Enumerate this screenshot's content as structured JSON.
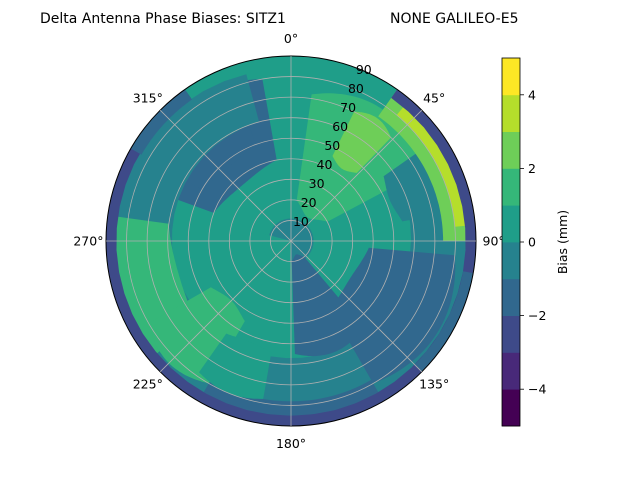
{
  "chart_data": {
    "type": "heatmap",
    "projection": "polar",
    "title_left": "Delta Antenna Phase Biases: SITZ1",
    "title_right": "NONE GALILEO-E5",
    "angular_ticks": [
      "0°",
      "45°",
      "90°",
      "135°",
      "180°",
      "225°",
      "270°",
      "315°"
    ],
    "radial_ticks": [
      "10",
      "20",
      "30",
      "40",
      "50",
      "60",
      "70",
      "80",
      "90"
    ],
    "theta_direction": "clockwise",
    "theta_zero": "top",
    "rlim": [
      0,
      90
    ],
    "colorbar": {
      "label": "Bias (mm)",
      "ticks": [
        "−4",
        "−2",
        "0",
        "2",
        "4"
      ],
      "range": [
        -5,
        5
      ],
      "levels": [
        -5,
        -4,
        -3,
        -2,
        -1,
        0,
        1,
        2,
        3,
        4,
        5
      ],
      "colors": [
        "#440154",
        "#482979",
        "#3e4a89",
        "#31688e",
        "#26828e",
        "#1f9e89",
        "#35b779",
        "#6ece58",
        "#b5de2b",
        "#fde725"
      ]
    },
    "field_regions": [
      {
        "region": "background",
        "bias": 0.5
      },
      {
        "region": "inner ring 0-10",
        "bias": -0.5
      },
      {
        "region": "north-west band 40-80, azimuth 290-350",
        "bias": -1.5
      },
      {
        "region": "north 60-85, azimuth 350-30",
        "bias": -0.5
      },
      {
        "region": "north-east 20-70, azimuth 10-60",
        "bias": 1.5
      },
      {
        "region": "north-east 50-75, azimuth 25-45",
        "bias": 2.5
      },
      {
        "region": "north-east rim 75-90, azimuth 35-85",
        "bias": 4.5
      },
      {
        "region": "east-south-east 35-80, azimuth 95-150",
        "bias": -1.5
      },
      {
        "region": "south-south-east 10-55, azimuth 140-175",
        "bias": -1.5
      },
      {
        "region": "west 60-90, azimuth 230-275",
        "bias": 1.5
      },
      {
        "region": "south-west 45-80, azimuth 210-240",
        "bias": 1.5
      },
      {
        "region": "south rim 85-90, azimuth 150-210",
        "bias": -2.5
      },
      {
        "region": "north rim 86-90, azimuth 330-30",
        "bias": -2.5
      }
    ],
    "grid": true
  }
}
